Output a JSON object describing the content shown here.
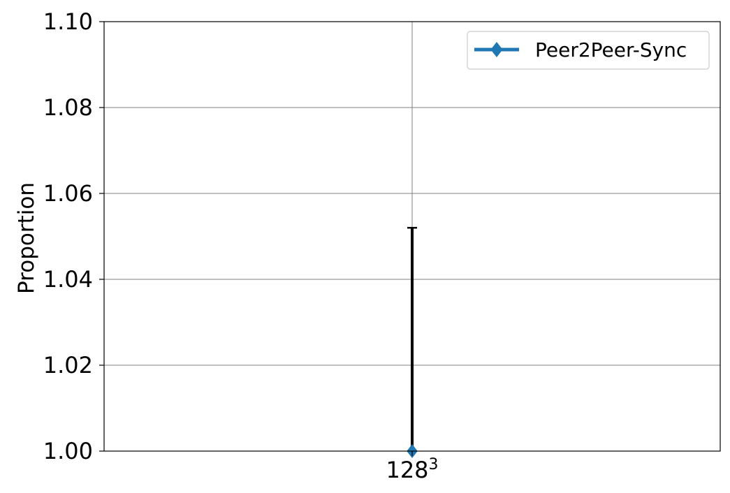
{
  "chart_data": {
    "type": "line",
    "title": "",
    "xlabel": "",
    "ylabel": "Proportion",
    "categories": [
      {
        "base": "128",
        "sup": "3"
      }
    ],
    "ylim": [
      1.0,
      1.1
    ],
    "yticks": [
      "1.00",
      "1.02",
      "1.04",
      "1.06",
      "1.08",
      "1.10"
    ],
    "grid": true,
    "legend_position": "top-right",
    "series": [
      {
        "name": "Peer2Peer-Sync",
        "color": "#1f77b4",
        "marker": "diamond",
        "values": [
          1.0
        ],
        "error_upper": [
          1.052
        ],
        "error_color": "#000000"
      }
    ]
  }
}
